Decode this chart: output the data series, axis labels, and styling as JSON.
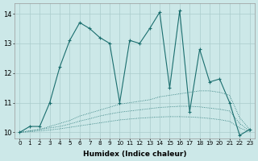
{
  "xlabel": "Humidex (Indice chaleur)",
  "xlim": [
    -0.5,
    23.5
  ],
  "ylim": [
    9.8,
    14.35
  ],
  "yticks": [
    10,
    11,
    12,
    13,
    14
  ],
  "xticks": [
    0,
    1,
    2,
    3,
    4,
    5,
    6,
    7,
    8,
    9,
    10,
    11,
    12,
    13,
    14,
    15,
    16,
    17,
    18,
    19,
    20,
    21,
    22,
    23
  ],
  "bg_color": "#cce8e8",
  "grid_color": "#aacccc",
  "line_color": "#1a6e6e",
  "main_series": [
    10.0,
    10.2,
    10.2,
    11.0,
    12.2,
    13.1,
    13.7,
    13.5,
    13.2,
    13.0,
    11.0,
    13.1,
    13.0,
    13.5,
    14.05,
    11.5,
    14.1,
    10.7,
    12.8,
    11.7,
    11.8,
    11.0,
    9.9,
    10.1
  ],
  "env_series": [
    [
      10.0,
      10.05,
      10.1,
      10.2,
      10.3,
      10.4,
      10.55,
      10.65,
      10.75,
      10.85,
      10.95,
      11.0,
      11.05,
      11.1,
      11.2,
      11.25,
      11.3,
      11.35,
      11.4,
      11.4,
      11.35,
      11.25,
      10.5,
      10.1
    ],
    [
      10.0,
      10.05,
      10.1,
      10.15,
      10.2,
      10.28,
      10.38,
      10.46,
      10.55,
      10.62,
      10.68,
      10.72,
      10.76,
      10.8,
      10.84,
      10.86,
      10.88,
      10.88,
      10.86,
      10.82,
      10.78,
      10.72,
      10.3,
      10.05
    ],
    [
      10.0,
      10.02,
      10.05,
      10.08,
      10.12,
      10.17,
      10.22,
      10.27,
      10.32,
      10.37,
      10.42,
      10.45,
      10.48,
      10.5,
      10.52,
      10.53,
      10.53,
      10.52,
      10.5,
      10.47,
      10.43,
      10.37,
      10.15,
      10.02
    ]
  ]
}
